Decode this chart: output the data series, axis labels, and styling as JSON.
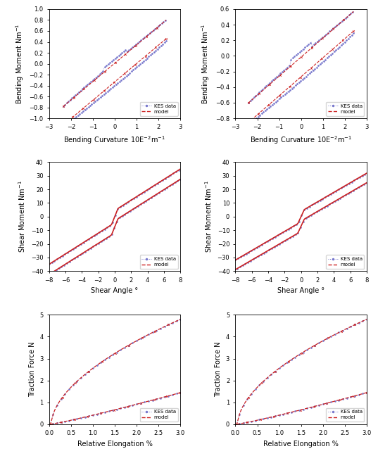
{
  "fig_width": 5.37,
  "fig_height": 6.48,
  "dpi": 100,
  "plots": [
    {
      "xlabel": "Bending Curvature 10E$^{-2}$m$^{-1}$",
      "ylabel": "Bending Moment Nm$^{-1}$",
      "xlim": [
        -3,
        3
      ],
      "ylim": [
        -1,
        1
      ],
      "yticks": [
        -1.0,
        -0.8,
        -0.6,
        -0.4,
        -0.2,
        0.0,
        0.2,
        0.4,
        0.6,
        0.8,
        1.0
      ],
      "xticks": [
        -3,
        -2,
        -1,
        0,
        1,
        2,
        3
      ],
      "x_end": 2.35,
      "y_top": 0.8,
      "y_bot": -0.78,
      "hysteresis": 0.38,
      "kink_x": 0.0,
      "kink_jump": 0.1
    },
    {
      "xlabel": "Bending Curvature 10E$^{-2}$m$^{-1}$",
      "ylabel": "Bending Moment Nm$^{-1}$",
      "xlim": [
        -3,
        3
      ],
      "ylim": [
        -0.8,
        0.6
      ],
      "yticks": [
        -0.8,
        -0.6,
        -0.4,
        -0.2,
        0.0,
        0.2,
        0.4,
        0.6
      ],
      "xticks": [
        -3,
        -2,
        -1,
        0,
        1,
        2,
        3
      ],
      "x_end": 2.4,
      "y_top": 0.57,
      "y_bot": -0.6,
      "hysteresis": 0.28,
      "kink_x": 0.0,
      "kink_jump": 0.12
    },
    {
      "xlabel": "Shear Angle °",
      "ylabel": "Shear Moment Nm$^{-1}$",
      "xlim": [
        -8,
        8
      ],
      "ylim": [
        -40,
        40
      ],
      "yticks": [
        -40,
        -30,
        -20,
        -10,
        0,
        10,
        20,
        30,
        40
      ],
      "xticks": [
        -8,
        -6,
        -4,
        -2,
        0,
        2,
        4,
        6,
        8
      ],
      "y_max": 32.0,
      "slope1": 3.8,
      "slope2": 15.0,
      "kink": 0.4,
      "hysteresis": 7.5
    },
    {
      "xlabel": "Shear Angle °",
      "ylabel": "Shear Moment Nm$^{-1}$",
      "xlim": [
        -8,
        8
      ],
      "ylim": [
        -40,
        40
      ],
      "yticks": [
        -40,
        -30,
        -20,
        -10,
        0,
        10,
        20,
        30,
        40
      ],
      "xticks": [
        -8,
        -6,
        -4,
        -2,
        0,
        2,
        4,
        6,
        8
      ],
      "y_max": 31.0,
      "slope1": 3.5,
      "slope2": 13.0,
      "kink": 0.4,
      "hysteresis": 7.0
    },
    {
      "xlabel": "Relative Elongation %",
      "ylabel": "Traction Force N",
      "xlim": [
        0,
        3
      ],
      "ylim": [
        0,
        5
      ],
      "yticks": [
        0,
        1,
        2,
        3,
        4,
        5
      ],
      "xticks": [
        0,
        0.5,
        1.0,
        1.5,
        2.0,
        2.5,
        3.0
      ],
      "x_flat": 0.05,
      "x_end": 3.0,
      "y_max": 4.8,
      "power": 1.8
    },
    {
      "xlabel": "Relative Elongation %",
      "ylabel": "Traction Force N",
      "xlim": [
        0,
        3
      ],
      "ylim": [
        0,
        5
      ],
      "yticks": [
        0,
        1,
        2,
        3,
        4,
        5
      ],
      "xticks": [
        0,
        0.5,
        1.0,
        1.5,
        2.0,
        2.5,
        3.0
      ],
      "x_flat": 0.05,
      "x_end": 3.0,
      "y_max": 4.8,
      "power": 1.8
    }
  ],
  "kes_color": "#7777cc",
  "model_color": "#cc2222"
}
